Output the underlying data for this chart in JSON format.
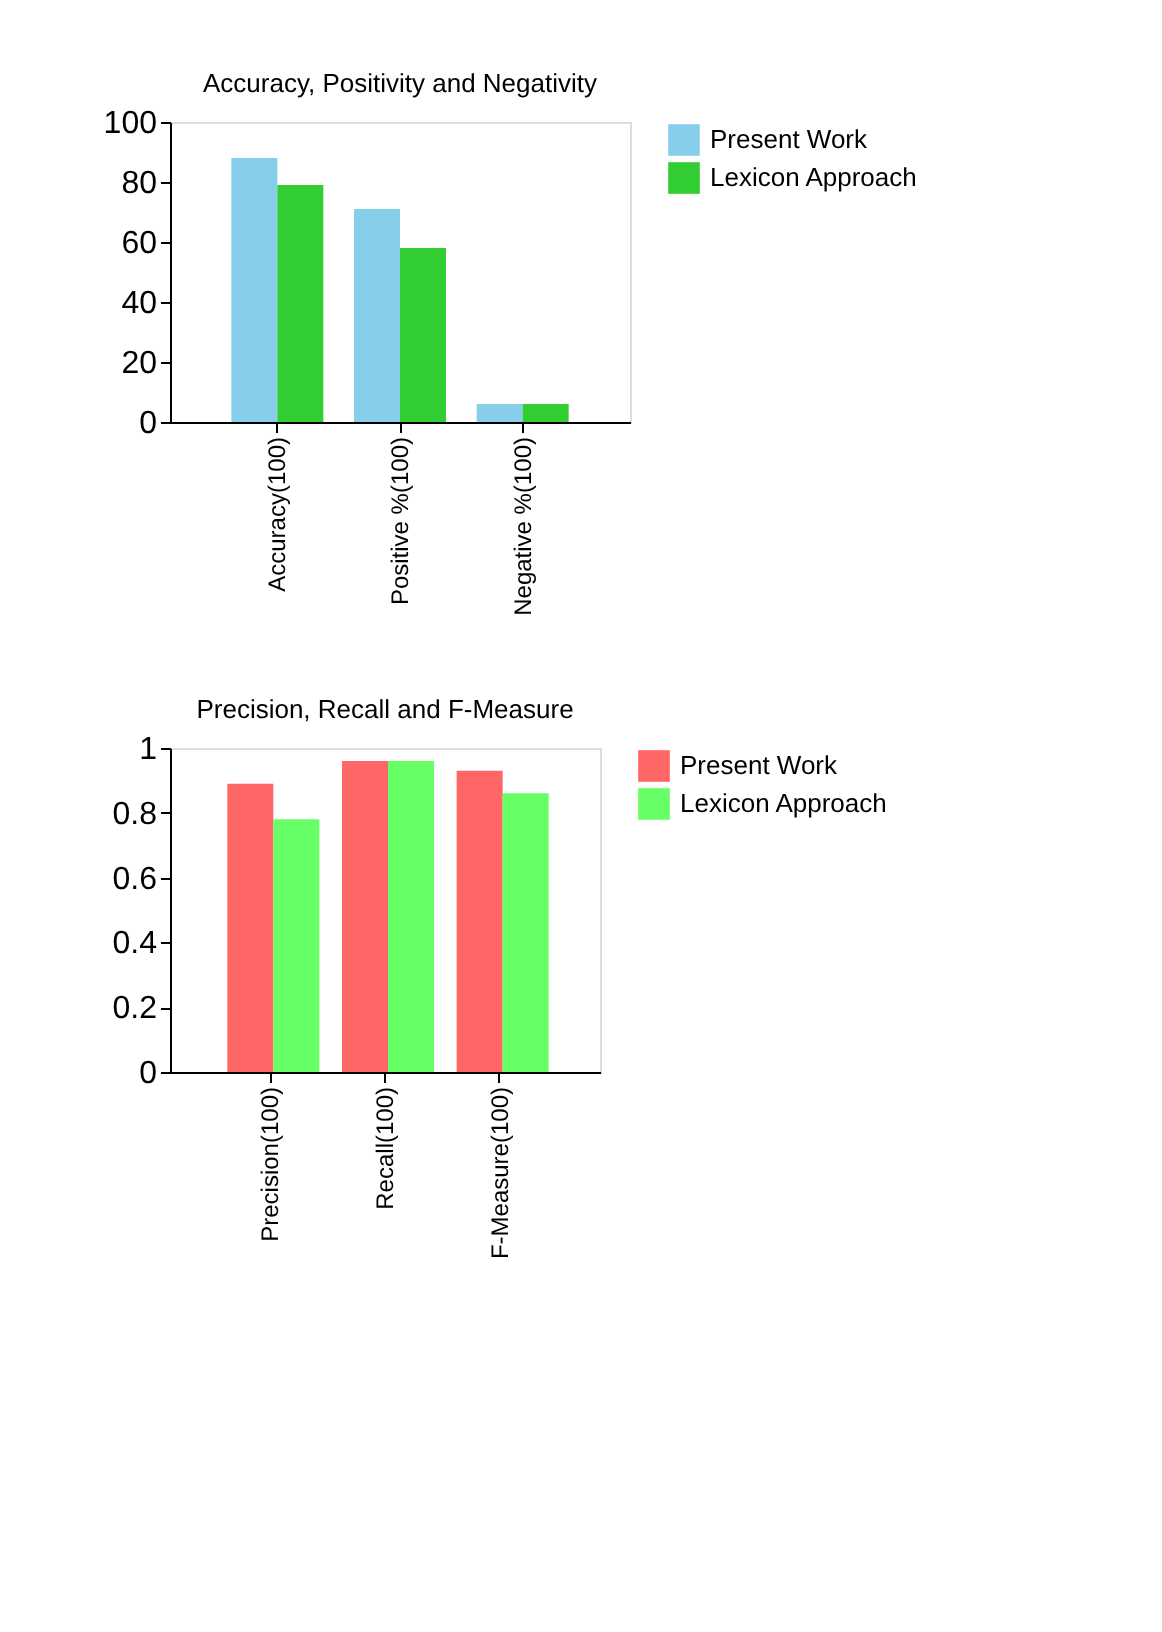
{
  "chart_data": [
    {
      "type": "bar",
      "title": "Accuracy, Positivity and Negativity",
      "categories": [
        "Accuracy(100)",
        "Positive %(100)",
        "Negative %(100)"
      ],
      "series": [
        {
          "name": "Present Work",
          "color": "#87ceeb",
          "values": [
            88,
            71,
            6
          ]
        },
        {
          "name": "Lexicon Approach",
          "color": "#32cd32",
          "values": [
            79,
            58,
            6
          ]
        }
      ],
      "ylim": [
        0,
        100
      ],
      "yticks": [
        0,
        20,
        40,
        60,
        80,
        100
      ],
      "grid": false,
      "legend": "right"
    },
    {
      "type": "bar",
      "title": "Precision, Recall and F-Measure",
      "categories": [
        "Precision(100)",
        "Recall(100)",
        "F-Measure(100)"
      ],
      "series": [
        {
          "name": "Present Work",
          "color": "#ff6666",
          "values": [
            0.89,
            0.96,
            0.93
          ]
        },
        {
          "name": "Lexicon Approach",
          "color": "#66ff66",
          "values": [
            0.78,
            0.96,
            0.86
          ]
        }
      ],
      "ylim": [
        0,
        1
      ],
      "yticks": [
        0,
        0.2,
        0.4,
        0.6,
        0.8,
        1
      ],
      "grid": false,
      "legend": "right"
    }
  ]
}
